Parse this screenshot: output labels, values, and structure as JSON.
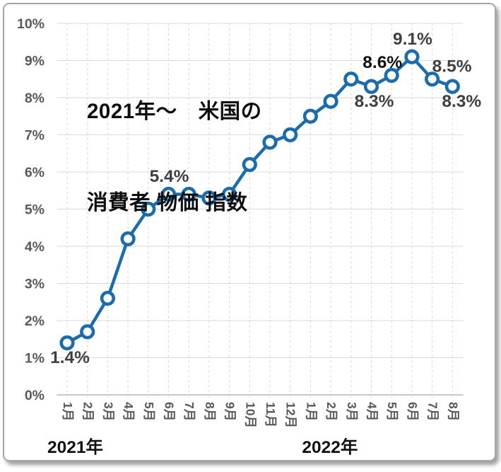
{
  "title": {
    "line1": "2021年～　米国の",
    "line2": "消費者 物価 指数"
  },
  "colors": {
    "line": "#1b6cad",
    "marker_fill": "#ffffff",
    "grid": "#d9d9d9",
    "axis_line": "#b5b5b5",
    "axis_text": "#595959",
    "label_gray": "#3f3f3f",
    "label_black": "#111111",
    "frame_border": "#a6a6a6"
  },
  "chart_data": {
    "type": "line",
    "title": "2021年～　米国の消費者 物価 指数",
    "categories": [
      "1月",
      "2月",
      "3月",
      "4月",
      "5月",
      "6月",
      "7月",
      "8月",
      "9月",
      "10月",
      "11月",
      "12月",
      "1月",
      "2月",
      "3月",
      "4月",
      "5月",
      "6月",
      "7月",
      "8月"
    ],
    "values": [
      1.4,
      1.7,
      2.6,
      4.2,
      5.0,
      5.4,
      5.4,
      5.3,
      5.4,
      6.2,
      6.8,
      7.0,
      7.5,
      7.9,
      8.5,
      8.3,
      8.6,
      9.1,
      8.5,
      8.3
    ],
    "x_groups": [
      {
        "year": "2021年",
        "months": [
          "1月",
          "2月",
          "3月",
          "4月",
          "5月",
          "6月",
          "7月",
          "8月",
          "9月",
          "10月",
          "11月",
          "12月"
        ]
      },
      {
        "year": "2022年",
        "months": [
          "1月",
          "2月",
          "3月",
          "4月",
          "5月",
          "6月",
          "7月",
          "8月"
        ]
      }
    ],
    "year_labels": [
      {
        "text": "2021年",
        "index": 0,
        "dx": -28
      },
      {
        "text": "2022年",
        "index": 12,
        "dx": -12
      }
    ],
    "y_ticks": [
      "0%",
      "1%",
      "2%",
      "3%",
      "4%",
      "5%",
      "6%",
      "7%",
      "8%",
      "9%",
      "10%"
    ],
    "ylim": [
      0,
      10
    ],
    "grid": "on",
    "legend": "none",
    "annotations": [
      {
        "index": 0,
        "text": "1.4%",
        "placement": "below",
        "color": "gray"
      },
      {
        "index": 5,
        "text": "5.4%",
        "placement": "above",
        "color": "gray"
      },
      {
        "index": 15,
        "text": "8.3%",
        "placement": "below",
        "color": "gray"
      },
      {
        "index": 16,
        "text": "8.6%",
        "placement": "above-left",
        "color": "black"
      },
      {
        "index": 17,
        "text": "9.1%",
        "placement": "above",
        "color": "gray"
      },
      {
        "index": 18,
        "text": "8.5%",
        "placement": "above-right",
        "color": "gray"
      },
      {
        "index": 19,
        "text": "8.3%",
        "placement": "below-right",
        "color": "gray"
      }
    ]
  }
}
